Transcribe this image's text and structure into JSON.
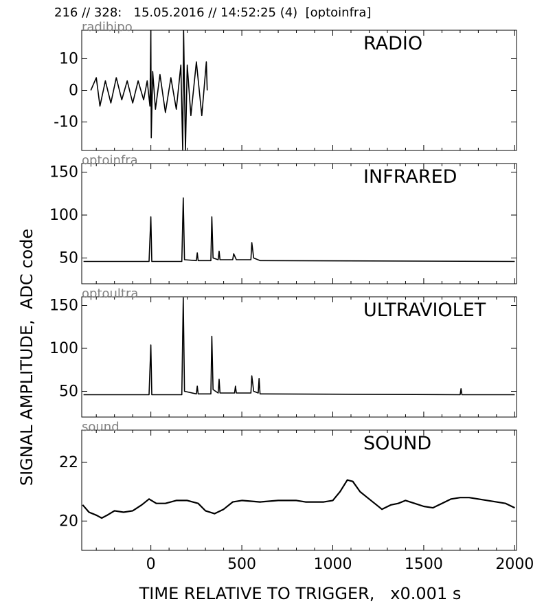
{
  "header": {
    "title": "216 // 328:   15.05.2016 // 14:52:25 (4)  [optoinfra]"
  },
  "figure": {
    "ylabel": "SIGNAL AMPLITUDE,  ADC code",
    "xlabel": "TIME RELATIVE TO TRIGGER,   x0.001 s"
  },
  "chart_data": [
    {
      "type": "line",
      "title": "RADIO",
      "channel": "radibipo",
      "xlim": [
        -380,
        2010
      ],
      "ylim": [
        -19,
        19
      ],
      "yticks": [
        -10,
        0,
        10
      ],
      "ytick_labels": [
        "-10",
        "0",
        "10"
      ],
      "series": [
        {
          "values": [
            [
              -330,
              0
            ],
            [
              -300,
              4
            ],
            [
              -280,
              -5
            ],
            [
              -250,
              3
            ],
            [
              -220,
              -4
            ],
            [
              -190,
              4
            ],
            [
              -160,
              -3
            ],
            [
              -130,
              3
            ],
            [
              -100,
              -4
            ],
            [
              -70,
              3
            ],
            [
              -40,
              -3
            ],
            [
              -20,
              3
            ],
            [
              -5,
              -5
            ],
            [
              0,
              19
            ],
            [
              2,
              -15
            ],
            [
              10,
              6
            ],
            [
              25,
              -6
            ],
            [
              50,
              5
            ],
            [
              80,
              -7
            ],
            [
              110,
              4
            ],
            [
              140,
              -6
            ],
            [
              165,
              8
            ],
            [
              175,
              -19
            ],
            [
              180,
              19
            ],
            [
              190,
              -19
            ],
            [
              200,
              8
            ],
            [
              220,
              -8
            ],
            [
              250,
              9
            ],
            [
              280,
              -8
            ],
            [
              305,
              9
            ],
            [
              310,
              0
            ]
          ]
        }
      ]
    },
    {
      "type": "line",
      "title": "INFRARED",
      "channel": "optoinfra",
      "xlim": [
        -380,
        2010
      ],
      "ylim": [
        20,
        160
      ],
      "yticks": [
        50,
        100,
        150
      ],
      "ytick_labels": [
        "50",
        "100",
        "150"
      ],
      "series": [
        {
          "values": [
            [
              -370,
              46
            ],
            [
              -10,
              46
            ],
            [
              0,
              98
            ],
            [
              5,
              46
            ],
            [
              170,
              46
            ],
            [
              178,
              120
            ],
            [
              185,
              48
            ],
            [
              250,
              47
            ],
            [
              255,
              56
            ],
            [
              260,
              47
            ],
            [
              330,
              47
            ],
            [
              335,
              98
            ],
            [
              342,
              50
            ],
            [
              370,
              48
            ],
            [
              375,
              58
            ],
            [
              380,
              48
            ],
            [
              450,
              48
            ],
            [
              455,
              55
            ],
            [
              470,
              48
            ],
            [
              550,
              48
            ],
            [
              555,
              68
            ],
            [
              565,
              50
            ],
            [
              600,
              47
            ],
            [
              2000,
              46
            ]
          ]
        }
      ]
    },
    {
      "type": "line",
      "title": "ULTRAVIOLET",
      "channel": "optoultra",
      "xlim": [
        -380,
        2010
      ],
      "ylim": [
        20,
        160
      ],
      "yticks": [
        50,
        100,
        150
      ],
      "ytick_labels": [
        "50",
        "100",
        "150"
      ],
      "series": [
        {
          "values": [
            [
              -370,
              46
            ],
            [
              -10,
              46
            ],
            [
              0,
              104
            ],
            [
              5,
              46
            ],
            [
              170,
              46
            ],
            [
              178,
              159
            ],
            [
              185,
              50
            ],
            [
              250,
              47
            ],
            [
              255,
              56
            ],
            [
              260,
              47
            ],
            [
              330,
              47
            ],
            [
              335,
              114
            ],
            [
              342,
              52
            ],
            [
              370,
              48
            ],
            [
              375,
              64
            ],
            [
              380,
              48
            ],
            [
              460,
              48
            ],
            [
              465,
              56
            ],
            [
              470,
              48
            ],
            [
              550,
              48
            ],
            [
              555,
              68
            ],
            [
              565,
              50
            ],
            [
              590,
              48
            ],
            [
              595,
              65
            ],
            [
              600,
              47
            ],
            [
              1700,
              46
            ],
            [
              1705,
              53
            ],
            [
              1710,
              46
            ],
            [
              2000,
              46
            ]
          ]
        }
      ]
    },
    {
      "type": "line",
      "title": "SOUND",
      "channel": "sound",
      "xlim": [
        -380,
        2010
      ],
      "ylim": [
        19,
        23.1
      ],
      "yticks": [
        20,
        22
      ],
      "ytick_labels": [
        "20",
        "22"
      ],
      "series": [
        {
          "values": [
            [
              -375,
              20.55
            ],
            [
              -340,
              20.3
            ],
            [
              -300,
              20.2
            ],
            [
              -270,
              20.1
            ],
            [
              -240,
              20.2
            ],
            [
              -200,
              20.35
            ],
            [
              -150,
              20.3
            ],
            [
              -100,
              20.35
            ],
            [
              -50,
              20.55
            ],
            [
              -10,
              20.75
            ],
            [
              30,
              20.6
            ],
            [
              80,
              20.6
            ],
            [
              140,
              20.7
            ],
            [
              200,
              20.7
            ],
            [
              260,
              20.6
            ],
            [
              300,
              20.35
            ],
            [
              350,
              20.25
            ],
            [
              400,
              20.4
            ],
            [
              450,
              20.65
            ],
            [
              500,
              20.7
            ],
            [
              600,
              20.65
            ],
            [
              700,
              20.7
            ],
            [
              800,
              20.7
            ],
            [
              850,
              20.65
            ],
            [
              950,
              20.65
            ],
            [
              1000,
              20.7
            ],
            [
              1040,
              21.0
            ],
            [
              1080,
              21.4
            ],
            [
              1110,
              21.35
            ],
            [
              1150,
              21.0
            ],
            [
              1190,
              20.8
            ],
            [
              1240,
              20.55
            ],
            [
              1270,
              20.4
            ],
            [
              1320,
              20.55
            ],
            [
              1360,
              20.6
            ],
            [
              1400,
              20.7
            ],
            [
              1450,
              20.6
            ],
            [
              1500,
              20.5
            ],
            [
              1550,
              20.45
            ],
            [
              1600,
              20.6
            ],
            [
              1650,
              20.75
            ],
            [
              1700,
              20.8
            ],
            [
              1750,
              20.8
            ],
            [
              1800,
              20.75
            ],
            [
              1850,
              20.7
            ],
            [
              1900,
              20.65
            ],
            [
              1950,
              20.6
            ],
            [
              2000,
              20.45
            ]
          ]
        }
      ]
    }
  ],
  "xaxis": {
    "ticks": [
      0,
      500,
      1000,
      1500,
      2000
    ],
    "tick_labels": [
      "0",
      "500",
      "1000",
      "1500",
      "2000"
    ]
  }
}
